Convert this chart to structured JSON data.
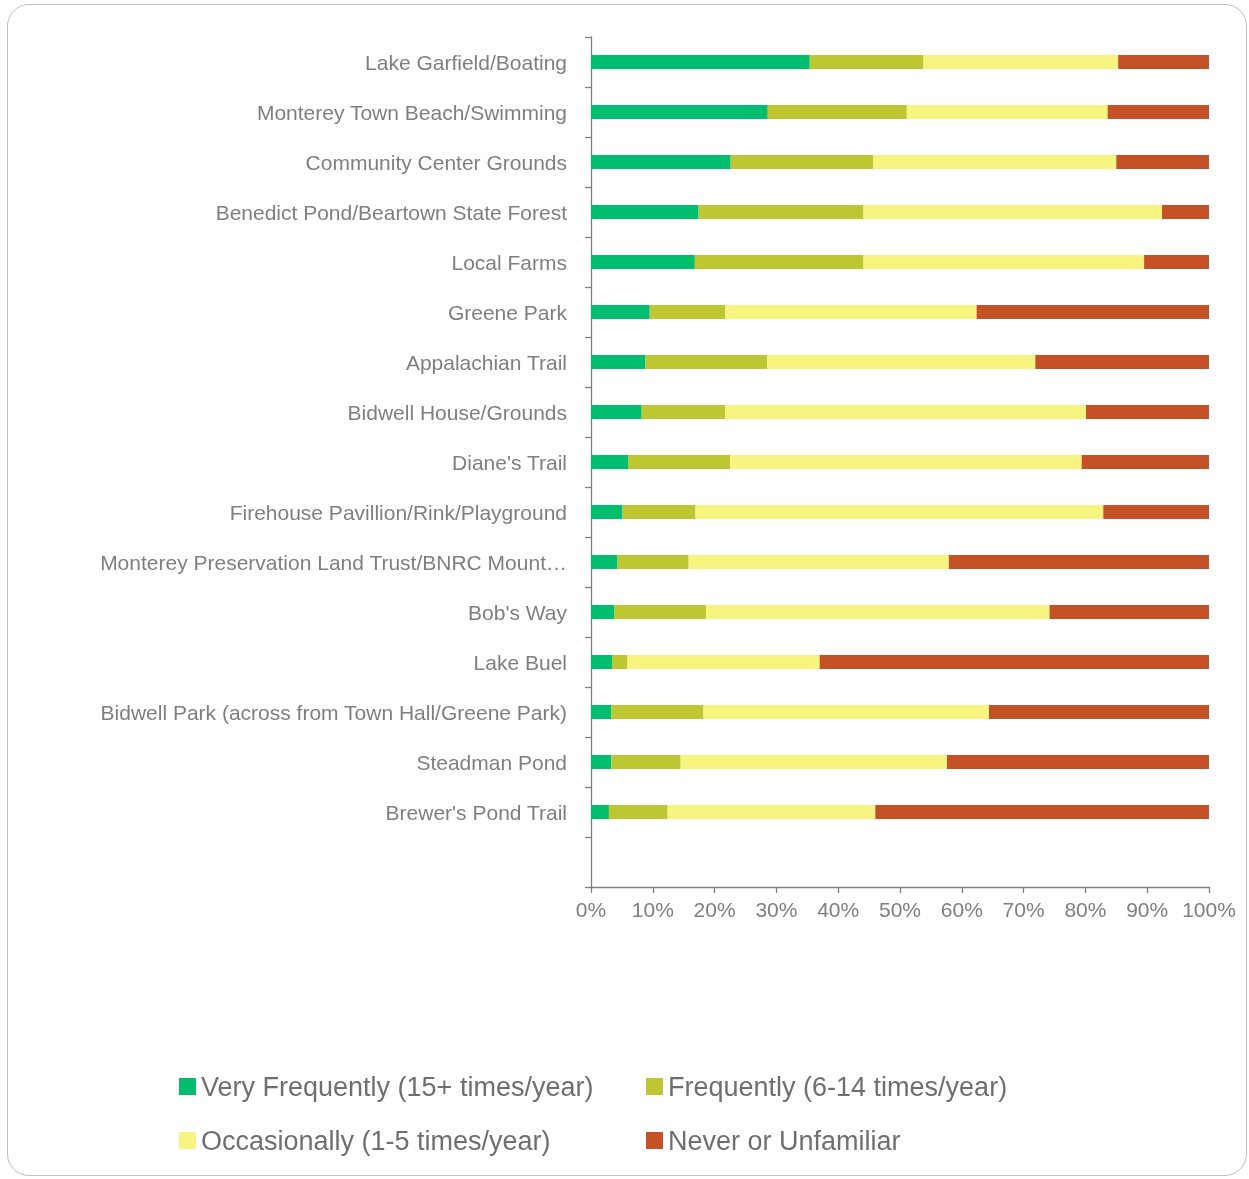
{
  "chart_data": {
    "type": "bar",
    "orientation": "horizontal",
    "stacked": true,
    "categories": [
      "Lake Garfield/Boating",
      "Monterey Town Beach/Swimming",
      "Community Center Grounds",
      "Benedict Pond/Beartown State Forest",
      "Local Farms",
      "Greene Park",
      "Appalachian Trail",
      "Bidwell House/Grounds",
      "Diane's Trail",
      "Firehouse Pavillion/Rink/Playground",
      "Monterey Preservation Land Trust/BNRC Mount…",
      "Bob's Way",
      "Lake Buel",
      "Bidwell Park (across from Town Hall/Greene Park)",
      "Steadman Pond",
      "Brewer's Pond Trail",
      null
    ],
    "series": [
      {
        "name": "Very Frequently (15+ times/year)",
        "color": "#00be70",
        "values": [
          35.4,
          28.6,
          22.6,
          17.4,
          16.8,
          9.5,
          8.8,
          8.2,
          6.0,
          5.1,
          4.3,
          3.8,
          3.4,
          3.3,
          3.3,
          2.9,
          null
        ]
      },
      {
        "name": "Frequently (6-14 times/year)",
        "color": "#bdc731",
        "values": [
          18.4,
          22.5,
          23.1,
          26.7,
          27.3,
          12.2,
          19.7,
          13.5,
          16.5,
          11.8,
          11.5,
          14.8,
          2.5,
          14.9,
          11.2,
          9.5,
          null
        ]
      },
      {
        "name": "Occasionally (1-5 times/year)",
        "color": "#f7f47f",
        "values": [
          31.5,
          32.5,
          39.3,
          48.3,
          45.4,
          40.7,
          43.4,
          58.4,
          56.9,
          66.0,
          42.1,
          55.6,
          31.1,
          46.2,
          43.1,
          33.6,
          null
        ]
      },
      {
        "name": "Never or Unfamiliar",
        "color": "#c55227",
        "values": [
          14.7,
          16.4,
          15.0,
          7.6,
          10.5,
          37.6,
          28.1,
          19.9,
          20.6,
          17.1,
          42.1,
          25.8,
          63.0,
          35.6,
          42.4,
          54.0,
          null
        ]
      }
    ],
    "xlim": [
      0,
      100
    ],
    "xticks": [
      {
        "value": 0,
        "label": "0%"
      },
      {
        "value": 10,
        "label": "10%"
      },
      {
        "value": 20,
        "label": "20%"
      },
      {
        "value": 30,
        "label": "30%"
      },
      {
        "value": 40,
        "label": "40%"
      },
      {
        "value": 50,
        "label": "50%"
      },
      {
        "value": 60,
        "label": "60%"
      },
      {
        "value": 70,
        "label": "70%"
      },
      {
        "value": 80,
        "label": "80%"
      },
      {
        "value": 90,
        "label": "90%"
      },
      {
        "value": 100,
        "label": "100%"
      }
    ],
    "grid": false,
    "legend": "bottom"
  }
}
